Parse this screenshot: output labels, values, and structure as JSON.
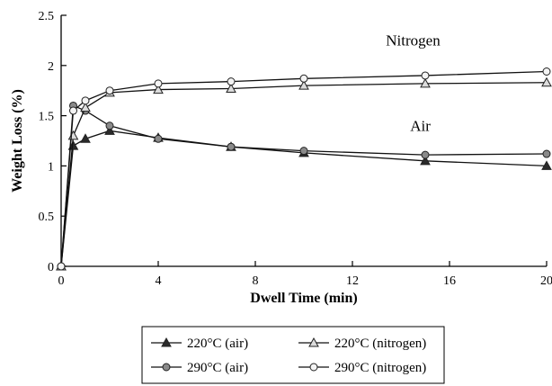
{
  "chart_data": {
    "type": "line",
    "xlabel": "Dwell Time (min)",
    "ylabel": "Weight Loss (%)",
    "xlim": [
      0,
      20
    ],
    "ylim": [
      0,
      2.5
    ],
    "xticks": [
      "0",
      "4",
      "8",
      "12",
      "16",
      "20"
    ],
    "yticks": [
      "0",
      "0.5",
      "1",
      "1.5",
      "2",
      "2.5"
    ],
    "grid": false,
    "annotations": [
      {
        "text": "Nitrogen",
        "x": 14.5,
        "y": 2.2
      },
      {
        "text": "Air",
        "x": 14.8,
        "y": 1.35
      }
    ],
    "legend": {
      "placement": "bottom"
    },
    "series": [
      {
        "name": "220°C (air)",
        "marker": "triangle",
        "fill": "#2a2a2a",
        "x": [
          0,
          0.5,
          1,
          2,
          4,
          7,
          10,
          15,
          20
        ],
        "y": [
          0,
          1.2,
          1.27,
          1.35,
          1.28,
          1.19,
          1.13,
          1.05,
          1.0
        ]
      },
      {
        "name": "290°C (air)",
        "marker": "circle",
        "fill": "#8a8a8a",
        "x": [
          0,
          0.5,
          1,
          2,
          4,
          7,
          10,
          15,
          20
        ],
        "y": [
          0,
          1.6,
          1.55,
          1.4,
          1.27,
          1.19,
          1.15,
          1.11,
          1.12
        ]
      },
      {
        "name": "220°C (nitrogen)",
        "marker": "triangle",
        "fill": "#dcdcdc",
        "x": [
          0,
          0.5,
          1,
          2,
          4,
          7,
          10,
          15,
          20
        ],
        "y": [
          0,
          1.3,
          1.58,
          1.73,
          1.76,
          1.77,
          1.8,
          1.82,
          1.83
        ]
      },
      {
        "name": "290°C (nitrogen)",
        "marker": "circle",
        "fill": "#f4f4f4",
        "x": [
          0,
          0.5,
          1,
          2,
          4,
          7,
          10,
          15,
          20
        ],
        "y": [
          0,
          1.55,
          1.65,
          1.75,
          1.82,
          1.84,
          1.87,
          1.9,
          1.94
        ]
      }
    ]
  }
}
